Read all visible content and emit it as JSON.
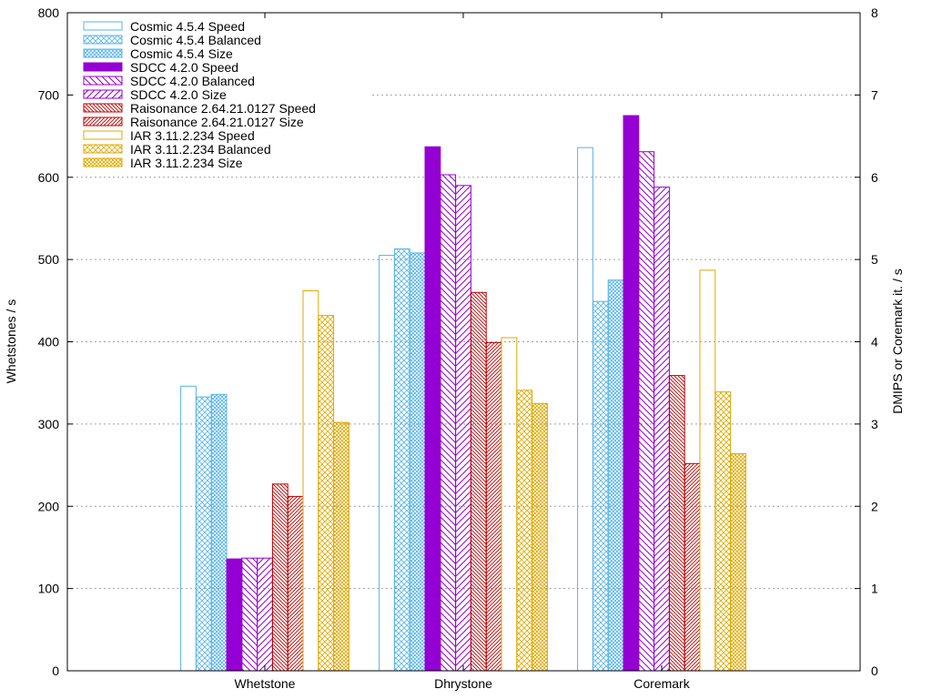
{
  "chart_data": {
    "type": "bar",
    "title": "",
    "xlabel": "",
    "ylabel": "Whetstones / s",
    "y2label": "DMIPS or Coremark it. / s",
    "ylim": [
      0,
      800
    ],
    "y2lim": [
      0,
      8
    ],
    "yticks": [
      "0",
      "100",
      "200",
      "300",
      "400",
      "500",
      "600",
      "700",
      "800"
    ],
    "y2ticks": [
      "0",
      "1",
      "2",
      "3",
      "4",
      "5",
      "6",
      "7",
      "8"
    ],
    "grid": true,
    "legend_position": "top-left",
    "categories": [
      "Whetstone",
      "Dhrystone",
      "Coremark"
    ],
    "series": [
      {
        "name": "Cosmic 4.5.4 Speed",
        "values": [
          346,
          505,
          636
        ],
        "color": "#56b4e9",
        "pattern": "empty"
      },
      {
        "name": "Cosmic 4.5.4 Balanced",
        "values": [
          333,
          513,
          449
        ],
        "color": "#56b4e9",
        "pattern": "cross"
      },
      {
        "name": "Cosmic 4.5.4 Size",
        "values": [
          336,
          508,
          475
        ],
        "color": "#56b4e9",
        "pattern": "dense"
      },
      {
        "name": "SDCC 4.2.0 Speed",
        "values": [
          136,
          637,
          675
        ],
        "color": "#9400d3",
        "pattern": "solid"
      },
      {
        "name": "SDCC 4.2.0 Balanced",
        "values": [
          137,
          603,
          631
        ],
        "color": "#9400d3",
        "pattern": "diag-back"
      },
      {
        "name": "SDCC 4.2.0 Size",
        "values": [
          137,
          590,
          588
        ],
        "color": "#9400d3",
        "pattern": "diag-fwd"
      },
      {
        "name": "Raisonance 2.64.21.0127 Speed",
        "values": [
          227,
          460,
          359
        ],
        "color": "#c00000",
        "pattern": "diag-back-dense"
      },
      {
        "name": "Raisonance 2.64.21.0127 Size",
        "values": [
          212,
          399,
          252
        ],
        "color": "#c00000",
        "pattern": "diag-fwd-dense"
      },
      {
        "name": "IAR 3.11.2.234 Speed",
        "values": [
          462,
          405,
          487
        ],
        "color": "#e0a800",
        "pattern": "empty"
      },
      {
        "name": "IAR 3.11.2.234 Balanced",
        "values": [
          432,
          341,
          339
        ],
        "color": "#e0a800",
        "pattern": "cross"
      },
      {
        "name": "IAR 3.11.2.234 Size",
        "values": [
          302,
          325,
          264
        ],
        "color": "#e0a800",
        "pattern": "dense"
      }
    ]
  }
}
